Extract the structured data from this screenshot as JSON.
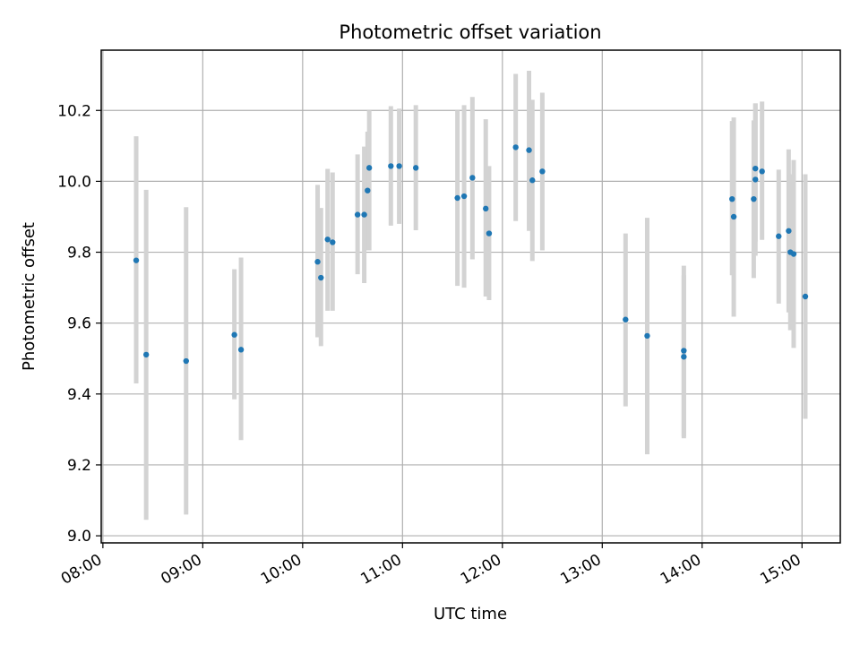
{
  "chart_data": {
    "type": "scatter",
    "title": "Photometric offset variation",
    "xlabel": "UTC time",
    "ylabel": "Photometric offset",
    "xlim": [
      "07:59",
      "15:23"
    ],
    "ylim": [
      8.98,
      10.37
    ],
    "x_ticks": [
      "08:00",
      "09:00",
      "10:00",
      "11:00",
      "12:00",
      "13:00",
      "14:00",
      "15:00"
    ],
    "y_ticks": [
      "9.0",
      "9.2",
      "9.4",
      "9.6",
      "9.8",
      "10.0",
      "10.2"
    ],
    "grid": true,
    "colors": {
      "points": "#1f77b4",
      "errorbars": "#d3d3d3",
      "grid": "#b0b0b0"
    },
    "series": [
      {
        "points": [
          {
            "x": "08:20",
            "y": 9.777,
            "low": 9.43,
            "high": 10.127
          },
          {
            "x": "08:26",
            "y": 9.511,
            "low": 9.045,
            "high": 9.976
          },
          {
            "x": "08:50",
            "y": 9.493,
            "low": 9.06,
            "high": 9.927
          },
          {
            "x": "09:19",
            "y": 9.567,
            "low": 9.385,
            "high": 9.752
          },
          {
            "x": "09:23",
            "y": 9.525,
            "low": 9.27,
            "high": 9.785
          },
          {
            "x": "10:09",
            "y": 9.773,
            "low": 9.56,
            "high": 9.99
          },
          {
            "x": "10:11",
            "y": 9.728,
            "low": 9.535,
            "high": 9.925
          },
          {
            "x": "10:15",
            "y": 9.836,
            "low": 9.635,
            "high": 10.035
          },
          {
            "x": "10:18",
            "y": 9.828,
            "low": 9.635,
            "high": 10.025
          },
          {
            "x": "10:33",
            "y": 9.906,
            "low": 9.738,
            "high": 10.076
          },
          {
            "x": "10:37",
            "y": 9.906,
            "low": 9.713,
            "high": 10.098
          },
          {
            "x": "10:39",
            "y": 9.974,
            "low": 9.805,
            "high": 10.14
          },
          {
            "x": "10:40",
            "y": 10.038,
            "low": 9.805,
            "high": 10.2
          },
          {
            "x": "10:53",
            "y": 10.043,
            "low": 9.875,
            "high": 10.212
          },
          {
            "x": "10:58",
            "y": 10.043,
            "low": 9.88,
            "high": 10.205
          },
          {
            "x": "11:08",
            "y": 10.038,
            "low": 9.862,
            "high": 10.215
          },
          {
            "x": "11:33",
            "y": 9.953,
            "low": 9.705,
            "high": 10.2
          },
          {
            "x": "11:37",
            "y": 9.958,
            "low": 9.7,
            "high": 10.215
          },
          {
            "x": "11:42",
            "y": 10.01,
            "low": 9.78,
            "high": 10.238
          },
          {
            "x": "11:50",
            "y": 9.923,
            "low": 9.675,
            "high": 10.175
          },
          {
            "x": "11:52",
            "y": 9.853,
            "low": 9.665,
            "high": 10.043
          },
          {
            "x": "12:08",
            "y": 10.096,
            "low": 9.888,
            "high": 10.303
          },
          {
            "x": "12:16",
            "y": 10.088,
            "low": 9.86,
            "high": 10.312
          },
          {
            "x": "12:18",
            "y": 10.003,
            "low": 9.775,
            "high": 10.23
          },
          {
            "x": "12:24",
            "y": 10.028,
            "low": 9.805,
            "high": 10.25
          },
          {
            "x": "13:14",
            "y": 9.61,
            "low": 9.365,
            "high": 9.853
          },
          {
            "x": "13:27",
            "y": 9.564,
            "low": 9.23,
            "high": 9.897
          },
          {
            "x": "13:49",
            "y": 9.505,
            "low": 9.275,
            "high": 9.735
          },
          {
            "x": "13:49",
            "y": 9.522,
            "low": 9.28,
            "high": 9.762
          },
          {
            "x": "14:18",
            "y": 9.95,
            "low": 9.735,
            "high": 10.17
          },
          {
            "x": "14:19",
            "y": 9.9,
            "low": 9.618,
            "high": 10.18
          },
          {
            "x": "14:31",
            "y": 9.95,
            "low": 9.727,
            "high": 10.172
          },
          {
            "x": "14:32",
            "y": 10.036,
            "low": 9.83,
            "high": 10.22
          },
          {
            "x": "14:32",
            "y": 10.005,
            "low": 9.79,
            "high": 10.22
          },
          {
            "x": "14:36",
            "y": 10.028,
            "low": 9.835,
            "high": 10.225
          },
          {
            "x": "14:46",
            "y": 9.845,
            "low": 9.655,
            "high": 10.033
          },
          {
            "x": "14:52",
            "y": 9.86,
            "low": 9.63,
            "high": 10.09
          },
          {
            "x": "14:53",
            "y": 9.8,
            "low": 9.58,
            "high": 10.02
          },
          {
            "x": "14:55",
            "y": 9.795,
            "low": 9.53,
            "high": 10.06
          },
          {
            "x": "15:02",
            "y": 9.675,
            "low": 9.33,
            "high": 10.02
          }
        ]
      }
    ]
  }
}
